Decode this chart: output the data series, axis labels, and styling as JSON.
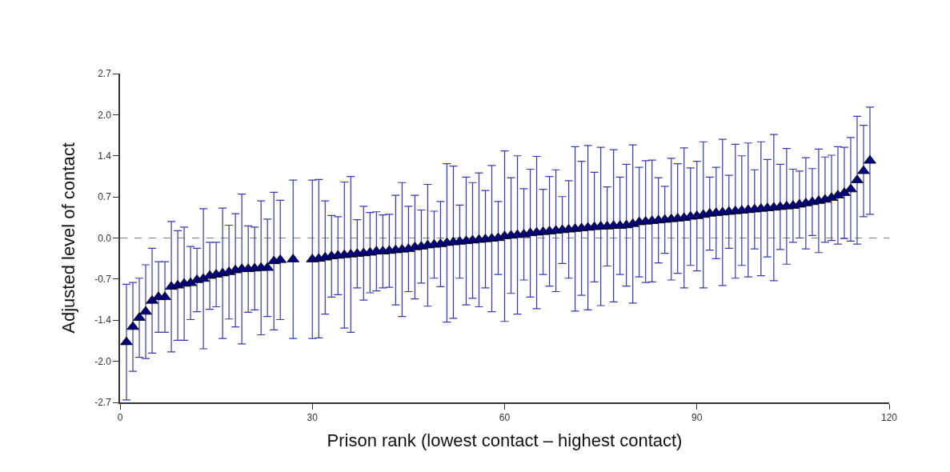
{
  "chart_data": {
    "type": "scatter",
    "xlabel": "Prison rank (lowest contact – highest contact)",
    "ylabel": "Adjusted level of contact",
    "x": [
      1,
      2,
      3,
      4,
      5,
      6,
      7,
      8,
      9,
      10,
      11,
      12,
      13,
      14,
      15,
      16,
      17,
      18,
      19,
      20,
      21,
      22,
      23,
      24,
      25,
      27,
      30,
      31,
      32,
      33,
      34,
      35,
      36,
      37,
      38,
      39,
      40,
      41,
      42,
      43,
      44,
      45,
      46,
      47,
      48,
      49,
      50,
      51,
      52,
      53,
      54,
      55,
      56,
      57,
      58,
      59,
      60,
      61,
      62,
      63,
      64,
      65,
      66,
      67,
      68,
      69,
      70,
      71,
      72,
      73,
      74,
      75,
      76,
      77,
      78,
      79,
      80,
      81,
      82,
      83,
      84,
      85,
      86,
      87,
      88,
      89,
      90,
      91,
      92,
      93,
      94,
      95,
      96,
      97,
      98,
      99,
      100,
      101,
      102,
      103,
      104,
      105,
      106,
      107,
      108,
      109,
      110,
      111,
      112,
      113,
      114,
      115,
      116,
      117
    ],
    "series": [
      {
        "color": "#000080",
        "values": [
          -1.71,
          -1.46,
          -1.31,
          -1.21,
          -1.03,
          -0.97,
          -0.97,
          -0.8,
          -0.78,
          -0.75,
          -0.74,
          -0.69,
          -0.67,
          -0.62,
          -0.6,
          -0.58,
          -0.56,
          -0.53,
          -0.51,
          -0.51,
          -0.5,
          -0.49,
          -0.49,
          -0.38,
          -0.36,
          -0.35,
          -0.35,
          -0.34,
          -0.32,
          -0.3,
          -0.29,
          -0.28,
          -0.27,
          -0.26,
          -0.25,
          -0.24,
          -0.22,
          -0.22,
          -0.21,
          -0.2,
          -0.19,
          -0.18,
          -0.15,
          -0.14,
          -0.12,
          -0.11,
          -0.1,
          -0.08,
          -0.07,
          -0.06,
          -0.05,
          -0.04,
          -0.03,
          -0.02,
          -0.01,
          0.0,
          0.03,
          0.04,
          0.05,
          0.06,
          0.08,
          0.09,
          0.1,
          0.11,
          0.12,
          0.13,
          0.14,
          0.15,
          0.16,
          0.17,
          0.18,
          0.19,
          0.19,
          0.2,
          0.2,
          0.21,
          0.23,
          0.26,
          0.27,
          0.28,
          0.29,
          0.3,
          0.31,
          0.32,
          0.33,
          0.35,
          0.36,
          0.38,
          0.4,
          0.41,
          0.42,
          0.43,
          0.44,
          0.45,
          0.46,
          0.47,
          0.48,
          0.49,
          0.5,
          0.51,
          0.52,
          0.53,
          0.55,
          0.57,
          0.59,
          0.61,
          0.63,
          0.66,
          0.7,
          0.74,
          0.8,
          0.95,
          1.1,
          1.27
        ],
        "errors": [
          0.95,
          0.73,
          0.65,
          0.77,
          0.86,
          0.58,
          0.58,
          1.07,
          0.9,
          0.93,
          0.6,
          0.52,
          1.15,
          0.55,
          0.53,
          1.07,
          0.77,
          0.93,
          1.23,
          0.71,
          0.68,
          1.1,
          0.8,
          1.13,
          0.98,
          1.3,
          1.3,
          1.3,
          0.93,
          0.67,
          0.64,
          1.2,
          1.28,
          0.56,
          0.77,
          0.66,
          0.65,
          0.6,
          0.6,
          0.9,
          1.1,
          0.7,
          0.85,
          0.6,
          1.0,
          0.55,
          0.7,
          1.3,
          1.25,
          0.6,
          1.05,
          0.95,
          1.1,
          0.8,
          1.2,
          0.6,
          1.4,
          0.95,
          1.3,
          0.75,
          1.05,
          1.25,
          0.7,
          0.9,
          1.0,
          0.55,
          0.8,
          1.35,
          1.1,
          1.35,
          0.9,
          1.3,
          0.65,
          1.25,
          0.8,
          1.0,
          1.3,
          0.9,
          1.0,
          1.0,
          0.7,
          0.55,
          1.0,
          0.9,
          1.15,
          0.8,
          0.9,
          1.2,
          0.6,
          0.75,
          1.2,
          0.6,
          1.1,
          0.9,
          1.1,
          0.65,
          1.1,
          0.8,
          1.2,
          0.7,
          0.95,
          0.6,
          0.55,
          0.75,
          0.55,
          0.85,
          0.7,
          0.7,
          0.8,
          0.75,
          0.85,
          1.05,
          0.75,
          0.88
        ]
      }
    ],
    "marker": "triangle",
    "xlim": [
      0,
      120
    ],
    "xticks": [
      0,
      30,
      60,
      90,
      120
    ],
    "ylim": [
      -2.7,
      2.7
    ],
    "yticks": [
      {
        "value": -2.7,
        "label": "-2.7"
      },
      {
        "value": -2.025,
        "label": "-2.0"
      },
      {
        "value": -1.35,
        "label": "-1.4"
      },
      {
        "value": -0.675,
        "label": "-0.7"
      },
      {
        "value": 0,
        "label": "0.0"
      },
      {
        "value": 0.675,
        "label": "0.7"
      },
      {
        "value": 1.35,
        "label": "1.4"
      },
      {
        "value": 2.025,
        "label": "2.0"
      },
      {
        "value": 2.7,
        "label": "2.7"
      }
    ],
    "ref_lines": [
      {
        "axis": "y",
        "value": 0,
        "color": "#808080",
        "line_style": "dashed"
      }
    ],
    "grid": false
  }
}
